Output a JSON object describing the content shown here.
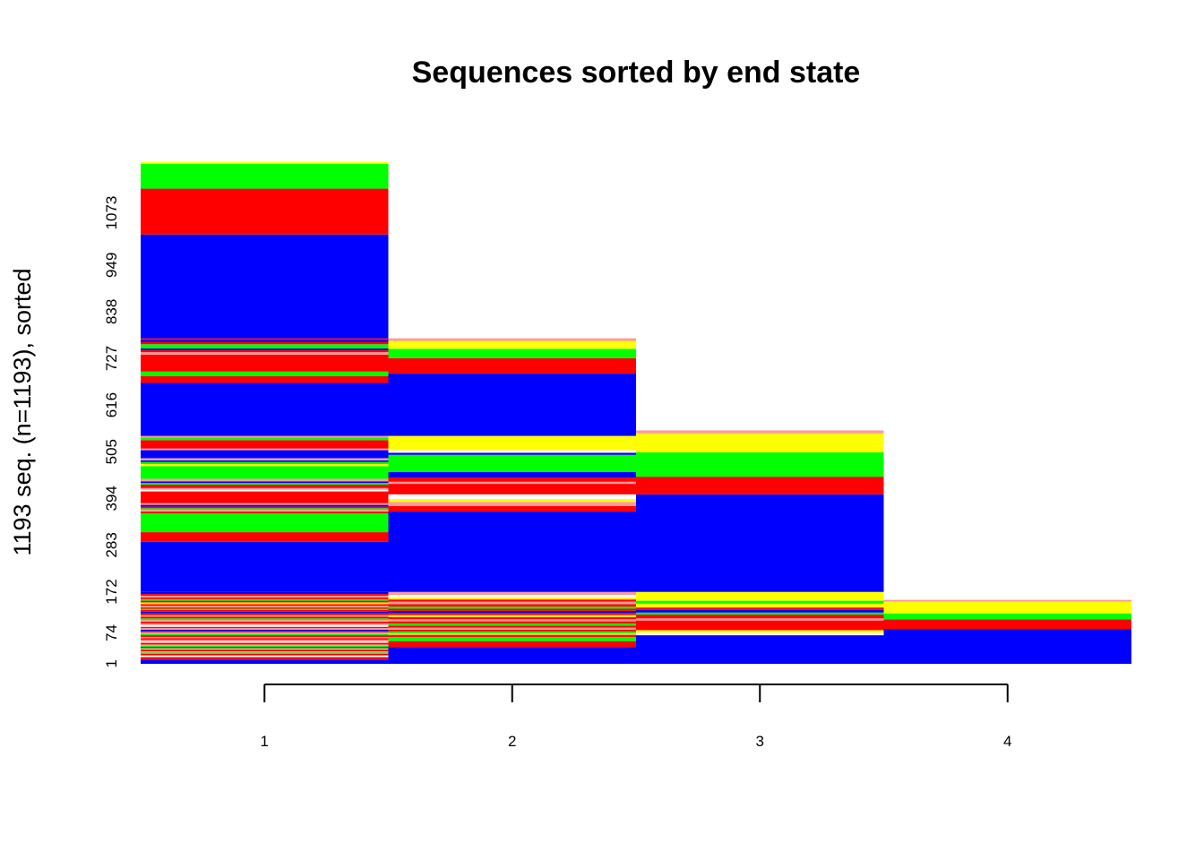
{
  "chart_data": {
    "type": "sequence_index_plot",
    "title": "Sequences sorted by end state",
    "xlabel": "",
    "ylabel": "1193 seq. (n=1193), sorted",
    "x_ticks": [
      "1",
      "2",
      "3",
      "4"
    ],
    "y_ticks": [
      "1",
      "74",
      "172",
      "283",
      "394",
      "505",
      "616",
      "727",
      "838",
      "949",
      "1073"
    ],
    "n_sequences": 1193,
    "state_colors": {
      "blue": "#0000ff",
      "red": "#ff0000",
      "green": "#00ff00",
      "yellow": "#ffff00",
      "pink": "#ff9999",
      "white": "#ffffff"
    },
    "ylim": [
      0,
      1193
    ],
    "columns": [
      {
        "x": "1",
        "bands": [
          {
            "from": 0,
            "to": 10,
            "state": "blue"
          },
          {
            "from": 10,
            "to": 16,
            "state": "red"
          },
          {
            "from": 16,
            "to": 20,
            "state": "white"
          },
          {
            "from": 20,
            "to": 24,
            "state": "red"
          },
          {
            "from": 24,
            "to": 27,
            "state": "green"
          },
          {
            "from": 27,
            "to": 30,
            "state": "pink"
          },
          {
            "from": 30,
            "to": 34,
            "state": "red"
          },
          {
            "from": 34,
            "to": 37,
            "state": "yellow"
          },
          {
            "from": 37,
            "to": 40,
            "state": "blue"
          },
          {
            "from": 40,
            "to": 43,
            "state": "green"
          },
          {
            "from": 43,
            "to": 46,
            "state": "pink"
          },
          {
            "from": 46,
            "to": 50,
            "state": "red"
          },
          {
            "from": 50,
            "to": 53,
            "state": "white"
          },
          {
            "from": 53,
            "to": 57,
            "state": "pink"
          },
          {
            "from": 57,
            "to": 61,
            "state": "red"
          },
          {
            "from": 61,
            "to": 64,
            "state": "pink"
          },
          {
            "from": 64,
            "to": 68,
            "state": "red"
          },
          {
            "from": 68,
            "to": 71,
            "state": "green"
          },
          {
            "from": 71,
            "to": 75,
            "state": "pink"
          },
          {
            "from": 75,
            "to": 78,
            "state": "red"
          },
          {
            "from": 78,
            "to": 81,
            "state": "blue"
          },
          {
            "from": 81,
            "to": 85,
            "state": "pink"
          },
          {
            "from": 85,
            "to": 88,
            "state": "red"
          },
          {
            "from": 88,
            "to": 92,
            "state": "white"
          },
          {
            "from": 92,
            "to": 96,
            "state": "pink"
          },
          {
            "from": 96,
            "to": 100,
            "state": "red"
          },
          {
            "from": 100,
            "to": 104,
            "state": "pink"
          },
          {
            "from": 104,
            "to": 108,
            "state": "green"
          },
          {
            "from": 108,
            "to": 112,
            "state": "red"
          },
          {
            "from": 112,
            "to": 116,
            "state": "pink"
          },
          {
            "from": 116,
            "to": 120,
            "state": "red"
          },
          {
            "from": 120,
            "to": 124,
            "state": "blue"
          },
          {
            "from": 124,
            "to": 128,
            "state": "red"
          },
          {
            "from": 128,
            "to": 131,
            "state": "green"
          },
          {
            "from": 131,
            "to": 134,
            "state": "red"
          },
          {
            "from": 134,
            "to": 138,
            "state": "pink"
          },
          {
            "from": 138,
            "to": 142,
            "state": "red"
          },
          {
            "from": 142,
            "to": 146,
            "state": "yellow"
          },
          {
            "from": 146,
            "to": 150,
            "state": "red"
          },
          {
            "from": 150,
            "to": 154,
            "state": "green"
          },
          {
            "from": 154,
            "to": 158,
            "state": "red"
          },
          {
            "from": 158,
            "to": 162,
            "state": "pink"
          },
          {
            "from": 162,
            "to": 166,
            "state": "red"
          },
          {
            "from": 166,
            "to": 171,
            "state": "blue"
          },
          {
            "from": 171,
            "to": 290,
            "state": "blue"
          },
          {
            "from": 290,
            "to": 313,
            "state": "red"
          },
          {
            "from": 313,
            "to": 358,
            "state": "green"
          },
          {
            "from": 358,
            "to": 362,
            "state": "red"
          },
          {
            "from": 362,
            "to": 366,
            "state": "pink"
          },
          {
            "from": 366,
            "to": 370,
            "state": "green"
          },
          {
            "from": 370,
            "to": 374,
            "state": "red"
          },
          {
            "from": 374,
            "to": 378,
            "state": "blue"
          },
          {
            "from": 378,
            "to": 382,
            "state": "pink"
          },
          {
            "from": 382,
            "to": 410,
            "state": "red"
          },
          {
            "from": 410,
            "to": 414,
            "state": "white"
          },
          {
            "from": 414,
            "to": 418,
            "state": "pink"
          },
          {
            "from": 418,
            "to": 426,
            "state": "red"
          },
          {
            "from": 426,
            "to": 430,
            "state": "green"
          },
          {
            "from": 430,
            "to": 434,
            "state": "blue"
          },
          {
            "from": 434,
            "to": 440,
            "state": "pink"
          },
          {
            "from": 440,
            "to": 470,
            "state": "green"
          },
          {
            "from": 470,
            "to": 475,
            "state": "yellow"
          },
          {
            "from": 475,
            "to": 480,
            "state": "green"
          },
          {
            "from": 480,
            "to": 484,
            "state": "blue"
          },
          {
            "from": 484,
            "to": 489,
            "state": "pink"
          },
          {
            "from": 489,
            "to": 508,
            "state": "blue"
          },
          {
            "from": 508,
            "to": 512,
            "state": "pink"
          },
          {
            "from": 512,
            "to": 532,
            "state": "red"
          },
          {
            "from": 532,
            "to": 538,
            "state": "green"
          },
          {
            "from": 538,
            "to": 542,
            "state": "pink"
          },
          {
            "from": 542,
            "to": 668,
            "state": "blue"
          },
          {
            "from": 668,
            "to": 684,
            "state": "red"
          },
          {
            "from": 684,
            "to": 695,
            "state": "green"
          },
          {
            "from": 695,
            "to": 735,
            "state": "red"
          },
          {
            "from": 735,
            "to": 741,
            "state": "pink"
          },
          {
            "from": 741,
            "to": 746,
            "state": "red"
          },
          {
            "from": 746,
            "to": 750,
            "state": "blue"
          },
          {
            "from": 750,
            "to": 760,
            "state": "green"
          },
          {
            "from": 760,
            "to": 765,
            "state": "red"
          },
          {
            "from": 765,
            "to": 770,
            "state": "blue"
          },
          {
            "from": 770,
            "to": 774,
            "state": "red"
          },
          {
            "from": 774,
            "to": 1021,
            "state": "blue"
          },
          {
            "from": 1021,
            "to": 1130,
            "state": "red"
          },
          {
            "from": 1130,
            "to": 1189,
            "state": "green"
          },
          {
            "from": 1189,
            "to": 1193,
            "state": "yellow"
          }
        ]
      },
      {
        "x": "2",
        "bands": [
          {
            "from": 0,
            "to": 40,
            "state": "blue"
          },
          {
            "from": 40,
            "to": 54,
            "state": "red"
          },
          {
            "from": 54,
            "to": 64,
            "state": "green"
          },
          {
            "from": 64,
            "to": 69,
            "state": "red"
          },
          {
            "from": 69,
            "to": 73,
            "state": "yellow"
          },
          {
            "from": 73,
            "to": 77,
            "state": "green"
          },
          {
            "from": 77,
            "to": 81,
            "state": "red"
          },
          {
            "from": 81,
            "to": 86,
            "state": "pink"
          },
          {
            "from": 86,
            "to": 91,
            "state": "red"
          },
          {
            "from": 91,
            "to": 96,
            "state": "green"
          },
          {
            "from": 96,
            "to": 101,
            "state": "red"
          },
          {
            "from": 101,
            "to": 106,
            "state": "pink"
          },
          {
            "from": 106,
            "to": 111,
            "state": "red"
          },
          {
            "from": 111,
            "to": 116,
            "state": "yellow"
          },
          {
            "from": 116,
            "to": 121,
            "state": "red"
          },
          {
            "from": 121,
            "to": 126,
            "state": "blue"
          },
          {
            "from": 126,
            "to": 131,
            "state": "red"
          },
          {
            "from": 131,
            "to": 136,
            "state": "green"
          },
          {
            "from": 136,
            "to": 142,
            "state": "red"
          },
          {
            "from": 142,
            "to": 148,
            "state": "pink"
          },
          {
            "from": 148,
            "to": 153,
            "state": "red"
          },
          {
            "from": 153,
            "to": 158,
            "state": "yellow"
          },
          {
            "from": 158,
            "to": 164,
            "state": "white"
          },
          {
            "from": 164,
            "to": 171,
            "state": "pink"
          },
          {
            "from": 171,
            "to": 362,
            "state": "blue"
          },
          {
            "from": 362,
            "to": 375,
            "state": "red"
          },
          {
            "from": 375,
            "to": 385,
            "state": "pink"
          },
          {
            "from": 385,
            "to": 392,
            "state": "yellow"
          },
          {
            "from": 392,
            "to": 403,
            "state": "white"
          },
          {
            "from": 403,
            "to": 428,
            "state": "red"
          },
          {
            "from": 428,
            "to": 433,
            "state": "pink"
          },
          {
            "from": 433,
            "to": 443,
            "state": "red"
          },
          {
            "from": 443,
            "to": 456,
            "state": "blue"
          },
          {
            "from": 456,
            "to": 497,
            "state": "green"
          },
          {
            "from": 497,
            "to": 502,
            "state": "blue"
          },
          {
            "from": 502,
            "to": 508,
            "state": "white"
          },
          {
            "from": 508,
            "to": 542,
            "state": "yellow"
          },
          {
            "from": 542,
            "to": 690,
            "state": "blue"
          },
          {
            "from": 690,
            "to": 727,
            "state": "red"
          },
          {
            "from": 727,
            "to": 749,
            "state": "green"
          },
          {
            "from": 749,
            "to": 760,
            "state": "yellow"
          },
          {
            "from": 760,
            "to": 768,
            "state": "yellow"
          },
          {
            "from": 768,
            "to": 774,
            "state": "pink"
          }
        ]
      },
      {
        "x": "3",
        "bands": [
          {
            "from": 0,
            "to": 68,
            "state": "blue"
          },
          {
            "from": 68,
            "to": 74,
            "state": "white"
          },
          {
            "from": 74,
            "to": 80,
            "state": "yellow"
          },
          {
            "from": 80,
            "to": 103,
            "state": "red"
          },
          {
            "from": 103,
            "to": 108,
            "state": "pink"
          },
          {
            "from": 108,
            "to": 117,
            "state": "red"
          },
          {
            "from": 117,
            "to": 122,
            "state": "green"
          },
          {
            "from": 122,
            "to": 128,
            "state": "blue"
          },
          {
            "from": 128,
            "to": 134,
            "state": "red"
          },
          {
            "from": 134,
            "to": 143,
            "state": "yellow"
          },
          {
            "from": 143,
            "to": 150,
            "state": "green"
          },
          {
            "from": 150,
            "to": 171,
            "state": "yellow"
          },
          {
            "from": 171,
            "to": 403,
            "state": "blue"
          },
          {
            "from": 403,
            "to": 445,
            "state": "red"
          },
          {
            "from": 445,
            "to": 503,
            "state": "green"
          },
          {
            "from": 503,
            "to": 548,
            "state": "yellow"
          },
          {
            "from": 548,
            "to": 555,
            "state": "pink"
          }
        ]
      },
      {
        "x": "4",
        "bands": [
          {
            "from": 0,
            "to": 83,
            "state": "blue"
          },
          {
            "from": 83,
            "to": 106,
            "state": "red"
          },
          {
            "from": 106,
            "to": 120,
            "state": "green"
          },
          {
            "from": 120,
            "to": 148,
            "state": "yellow"
          },
          {
            "from": 148,
            "to": 152,
            "state": "pink"
          }
        ]
      }
    ]
  }
}
